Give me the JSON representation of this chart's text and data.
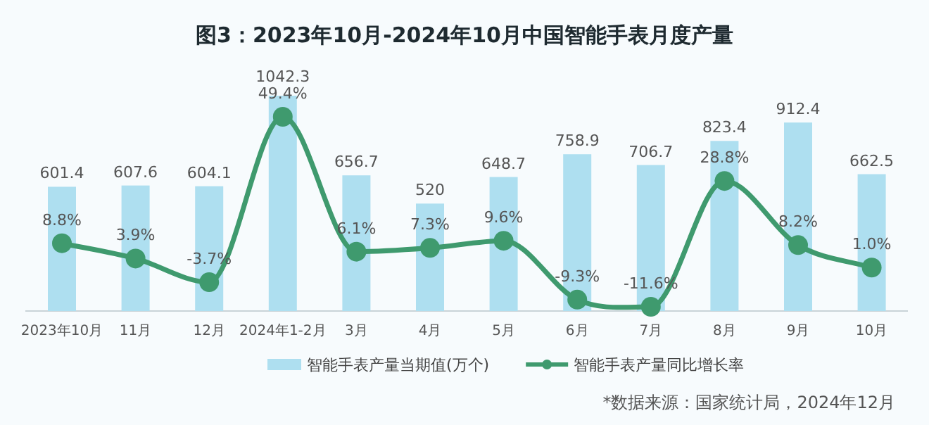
{
  "chart_data": {
    "type": "bar",
    "title": "图3：2023年10月-2024年10月中国智能手表月度产量",
    "categories": [
      "2023年10月",
      "11月",
      "12月",
      "2024年1-2月",
      "3月",
      "4月",
      "5月",
      "6月",
      "7月",
      "8月",
      "9月",
      "10月"
    ],
    "series": [
      {
        "name": "智能手表产量当期值(万个)",
        "color": "#aedff0",
        "values": [
          601.4,
          607.6,
          604.1,
          1042.3,
          656.7,
          520,
          648.7,
          758.9,
          706.7,
          823.4,
          912.4,
          662.5
        ]
      },
      {
        "name": "智能手表产量同比增长率",
        "type": "line",
        "axis": "y2",
        "color": "#3f9a6e",
        "values": [
          8.8,
          3.9,
          -3.7,
          49.4,
          6.1,
          7.3,
          9.6,
          -9.3,
          -11.6,
          28.8,
          8.2,
          1.0
        ],
        "value_labels": [
          "8.8%",
          "3.9%",
          "-3.7%",
          "49.4%",
          "6.1%",
          "7.3%",
          "9.6%",
          "-9.3%",
          "-11.6%",
          "28.8%",
          "8.2%",
          "1.0%"
        ]
      }
    ],
    "data_labels": true,
    "legend": "bottom",
    "marker": "circle",
    "annotations": [
      "*数据来源：国家统计局，2024年12月"
    ]
  }
}
